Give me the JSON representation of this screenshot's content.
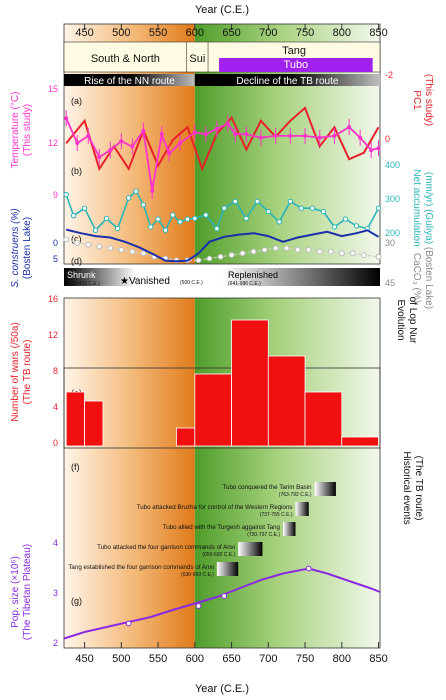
{
  "figure": {
    "x_axis_title": "Year (C.E.)",
    "x_ticks": [
      450,
      500,
      550,
      600,
      650,
      700,
      750,
      800,
      850
    ],
    "x_range": [
      422,
      852
    ],
    "colors": {
      "orange": "#e07a1a",
      "green": "#6fb041",
      "magenta": "#ff33cc",
      "red_pc1": "#e8222a",
      "cyan": "#2ab5b8",
      "navy": "#1a2fa8",
      "grey": "#cfcfcf",
      "red_bars": "#f01010",
      "purple": "#8a2be2"
    }
  },
  "periods": {
    "dynasties": [
      {
        "label": "South & North",
        "range": [
          422,
          589
        ]
      },
      {
        "label": "Sui",
        "range": [
          589,
          618
        ]
      },
      {
        "label": "Tang",
        "range": [
          618,
          852
        ]
      }
    ],
    "tubo_label": "Tubo",
    "tubo_range": [
      633,
      842
    ],
    "routes": [
      {
        "label": "Rise of the NN route",
        "range": [
          422,
          600
        ]
      },
      {
        "label": "Decline of the TB route",
        "range": [
          600,
          852
        ]
      }
    ]
  },
  "panel_letters": [
    "(a)",
    "(b)",
    "(c)",
    "(d)",
    "(e)",
    "(f)",
    "(g)"
  ],
  "axes_labels": {
    "temperature": [
      "Temperature (°C)",
      "(This study)"
    ],
    "pc1": [
      "PC1",
      "(This study)"
    ],
    "net_acc": [
      "Net accumulation",
      "(mm/yr) (Guliya)"
    ],
    "s_construens": [
      "S. construens (%)",
      "(Bosten Lake)"
    ],
    "caco3": [
      "CaCO₃ (%)",
      "(Bosten Lake)"
    ],
    "lop_nur": [
      "Evolution",
      "of Lop Nur"
    ],
    "wars": [
      "Number of wars (/50a)",
      "(The TB route)"
    ],
    "hist_events": [
      "Historical events",
      "(The TB route)"
    ],
    "pop_size": [
      "Pop. size (×10⁶)",
      "(The Tibetan Plateau)"
    ]
  },
  "left_ticks": {
    "temperature": [
      "15",
      "12",
      "9"
    ],
    "s_construens": [
      "0",
      "5"
    ],
    "wars": [
      "16",
      "12",
      "8",
      "4",
      "0"
    ],
    "pop": [
      "4",
      "3",
      "2"
    ]
  },
  "right_ticks": {
    "pc1": [
      "-2",
      "0"
    ],
    "net_acc": [
      "400",
      "300",
      "200"
    ],
    "caco3": [
      "30",
      "45"
    ]
  },
  "lop_nur": {
    "shrunk": "Shrunk",
    "shrunk_years": "(360-470 C.E.)",
    "vanished": "★Vanished",
    "vanished_years": "(500 C.E.)",
    "replenished": "Replenished",
    "replenished_years": "(641-986 C.E.)"
  },
  "events": [
    {
      "label": "Tubo conquered the Tarim Basin",
      "years": "(763-792 C.E.)",
      "range": [
        763,
        792
      ]
    },
    {
      "label": "Tubo attacked Bruzha for control of the Western Regions",
      "years": "(737-755 C.E.)",
      "range": [
        737,
        755
      ]
    },
    {
      "label": "Tubo allied with the Turgesh aggainst Tang",
      "years": "(720-737 C.E.)",
      "range": [
        720,
        737
      ]
    },
    {
      "label": "Tubo attacked the four garrison commands of Anxi",
      "years": "(659-692 C.E.)",
      "range": [
        659,
        692
      ]
    },
    {
      "label": "Tang established the four garrison commands of Anxi",
      "years": "(630-659 C.E.)",
      "range": [
        630,
        659
      ]
    }
  ],
  "chart_data": [
    {
      "type": "line",
      "panel": "(a)",
      "series": [
        {
          "name": "Temperature",
          "color": "#ff33cc",
          "x": [
            425,
            440,
            455,
            470,
            485,
            500,
            515,
            530,
            542,
            555,
            565,
            580,
            600,
            615,
            630,
            645,
            655,
            670,
            690,
            710,
            730,
            750,
            770,
            790,
            810,
            825,
            840,
            850
          ],
          "y": [
            13.4,
            12.0,
            12.4,
            11.2,
            11.6,
            12.1,
            11.8,
            12.7,
            9.3,
            12.5,
            11.4,
            12.0,
            12.6,
            12.5,
            12.8,
            13.1,
            12.5,
            12.5,
            12.3,
            12.4,
            12.4,
            12.4,
            12.3,
            12.4,
            12.9,
            12.3,
            11.6,
            11.7
          ]
        },
        {
          "name": "PC1",
          "color": "#e8222a",
          "x": [
            425,
            450,
            470,
            490,
            510,
            530,
            550,
            570,
            590,
            610,
            630,
            650,
            670,
            690,
            710,
            730,
            750,
            770,
            790,
            810,
            830,
            850
          ],
          "y": [
            0.1,
            -0.6,
            0.9,
            0.2,
            0.9,
            -0.3,
            0.8,
            0.0,
            -0.4,
            0.9,
            -0.2,
            -0.7,
            0.3,
            -0.6,
            -0.1,
            -0.6,
            -1.0,
            0.2,
            -0.4,
            0.6,
            0.4,
            -0.4
          ]
        }
      ],
      "ylim": [
        8.5,
        15.5
      ],
      "y2lim": [
        -2.6,
        2.0
      ]
    },
    {
      "type": "line",
      "panel": "(b)",
      "series": [
        {
          "name": "Net accumulation",
          "color": "#2ab5b8",
          "x": [
            425,
            435,
            450,
            465,
            480,
            495,
            510,
            520,
            530,
            540,
            550,
            560,
            570,
            580,
            590,
            600,
            615,
            630,
            640,
            655,
            670,
            685,
            700,
            715,
            730,
            745,
            760,
            775,
            790,
            805,
            820,
            835,
            850
          ],
          "y": [
            310,
            248,
            270,
            205,
            240,
            210,
            300,
            320,
            280,
            215,
            238,
            205,
            250,
            230,
            238,
            240,
            250,
            210,
            270,
            290,
            240,
            290,
            260,
            230,
            290,
            270,
            270,
            260,
            215,
            238,
            218,
            210,
            270
          ]
        }
      ],
      "ylim": [
        180,
        420
      ]
    },
    {
      "type": "line",
      "panel": "(c)",
      "series": [
        {
          "name": "S. construens",
          "color": "#1a2fa8",
          "x": [
            425,
            445,
            465,
            485,
            505,
            525,
            545,
            560,
            575,
            590,
            605,
            620,
            640,
            660,
            680,
            700,
            720,
            740,
            760,
            780,
            800,
            820,
            835,
            850
          ],
          "y": [
            0.5,
            1.0,
            1.4,
            1.6,
            2.2,
            3.0,
            4.0,
            4.8,
            4.9,
            4.8,
            3.8,
            2.2,
            1.5,
            1.2,
            1.0,
            1.4,
            2.2,
            1.6,
            1.2,
            0.8,
            1.4,
            1.0,
            0.6,
            1.5
          ]
        },
        {
          "name": "CaCO3",
          "color": "#cfcfcf",
          "x": [
            425,
            440,
            455,
            470,
            485,
            500,
            515,
            530,
            545,
            560,
            575,
            590,
            605,
            620,
            635,
            650,
            665,
            680,
            695,
            710,
            725,
            740,
            755,
            770,
            785,
            800,
            815,
            830,
            850
          ],
          "y": [
            32,
            34,
            35,
            36,
            37,
            38,
            39,
            40,
            42,
            43,
            44,
            44,
            44,
            43,
            42,
            41,
            40,
            39,
            38,
            37,
            37,
            38,
            38,
            39,
            39,
            40,
            40,
            41,
            42
          ]
        }
      ],
      "ylim": [
        -1.5,
        7
      ],
      "y2lim": [
        26,
        48
      ]
    },
    {
      "type": "bar",
      "panel": "(e)",
      "bins": [
        [
          425,
          450
        ],
        [
          450,
          475
        ],
        [
          525,
          550
        ],
        [
          575,
          600
        ],
        [
          600,
          650
        ],
        [
          650,
          700
        ],
        [
          700,
          750
        ],
        [
          750,
          800
        ],
        [
          800,
          850
        ]
      ],
      "values": [
        6,
        5,
        0,
        2,
        8,
        14,
        10,
        6,
        1
      ],
      "ylim": [
        0,
        16
      ]
    },
    {
      "type": "line",
      "panel": "(g)",
      "series": [
        {
          "name": "Pop. size",
          "color": "#8a2be2",
          "x": [
            422,
            450,
            480,
            510,
            540,
            570,
            600,
            630,
            660,
            690,
            720,
            755,
            780,
            810,
            840,
            852
          ],
          "y": [
            2.15,
            2.28,
            2.38,
            2.48,
            2.58,
            2.72,
            2.85,
            2.98,
            3.15,
            3.32,
            3.45,
            3.55,
            3.45,
            3.3,
            3.15,
            3.08
          ]
        }
      ],
      "markers": [
        [
          510,
          2.45
        ],
        [
          605,
          2.8
        ],
        [
          640,
          3.0
        ],
        [
          755,
          3.55
        ]
      ],
      "ylim": [
        1.8,
        4.8
      ]
    }
  ]
}
